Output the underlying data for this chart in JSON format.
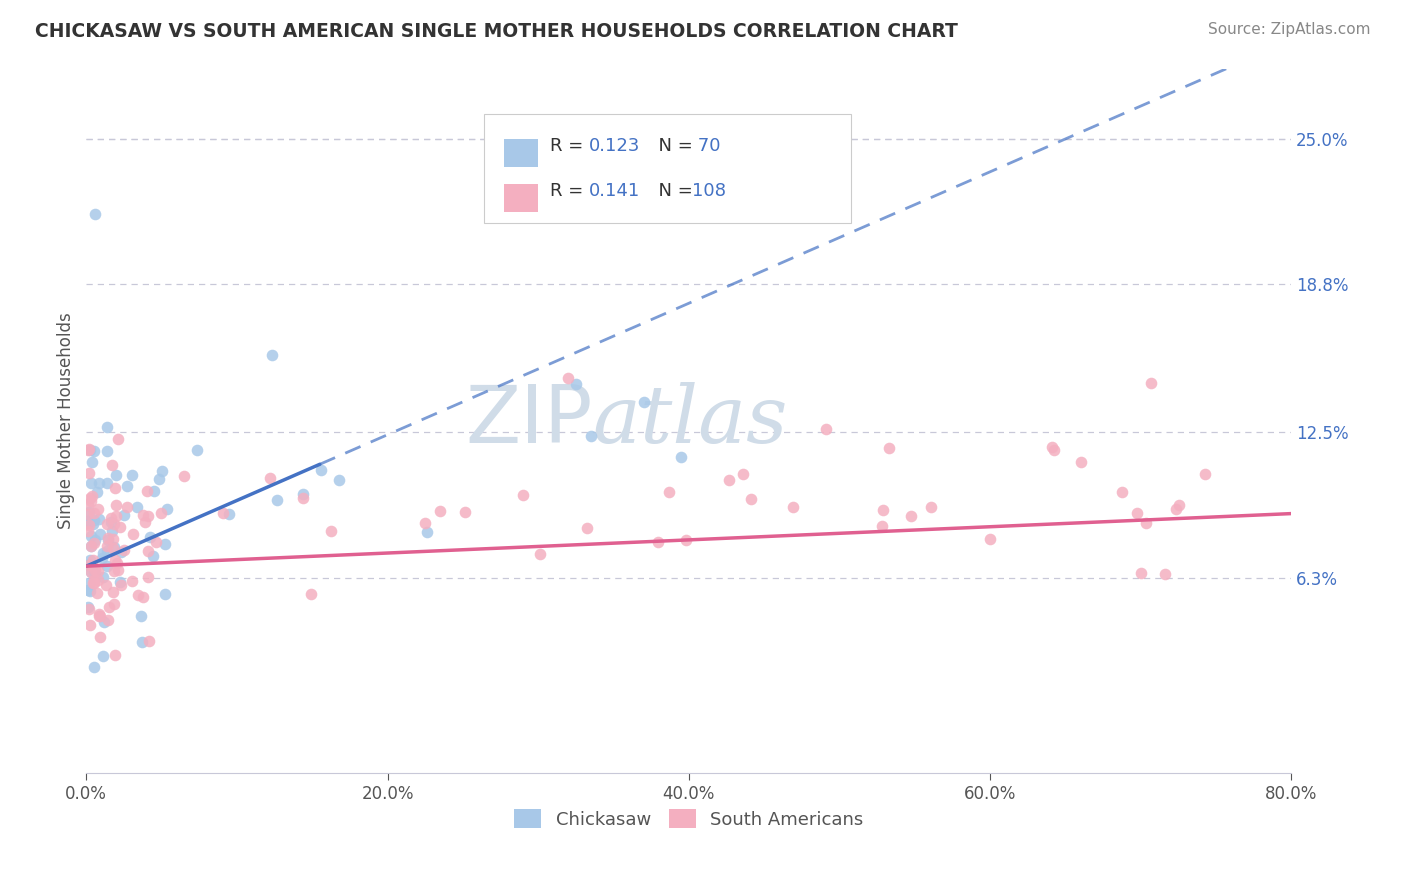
{
  "title": "CHICKASAW VS SOUTH AMERICAN SINGLE MOTHER HOUSEHOLDS CORRELATION CHART",
  "source": "Source: ZipAtlas.com",
  "ylabel": "Single Mother Households",
  "xlim": [
    0.0,
    0.8
  ],
  "ylim": [
    -0.02,
    0.28
  ],
  "right_yticks": [
    0.063,
    0.125,
    0.188,
    0.25
  ],
  "right_yticklabels": [
    "6.3%",
    "12.5%",
    "18.8%",
    "25.0%"
  ],
  "xticks": [
    0.0,
    0.2,
    0.4,
    0.6,
    0.8
  ],
  "xticklabels": [
    "0.0%",
    "20.0%",
    "40.0%",
    "60.0%",
    "80.0%"
  ],
  "chickasaw_color": "#a8c8e8",
  "south_american_color": "#f4afc0",
  "trend_blue": "#4472c4",
  "trend_pink": "#e06090",
  "axis_label_color": "#4472c4",
  "tick_color": "#555555",
  "background_color": "#ffffff",
  "grid_color": "#c8c8d8",
  "legend_label_1": "Chickasaw",
  "legend_label_2": "South Americans",
  "watermark_color": "#d0dce8"
}
